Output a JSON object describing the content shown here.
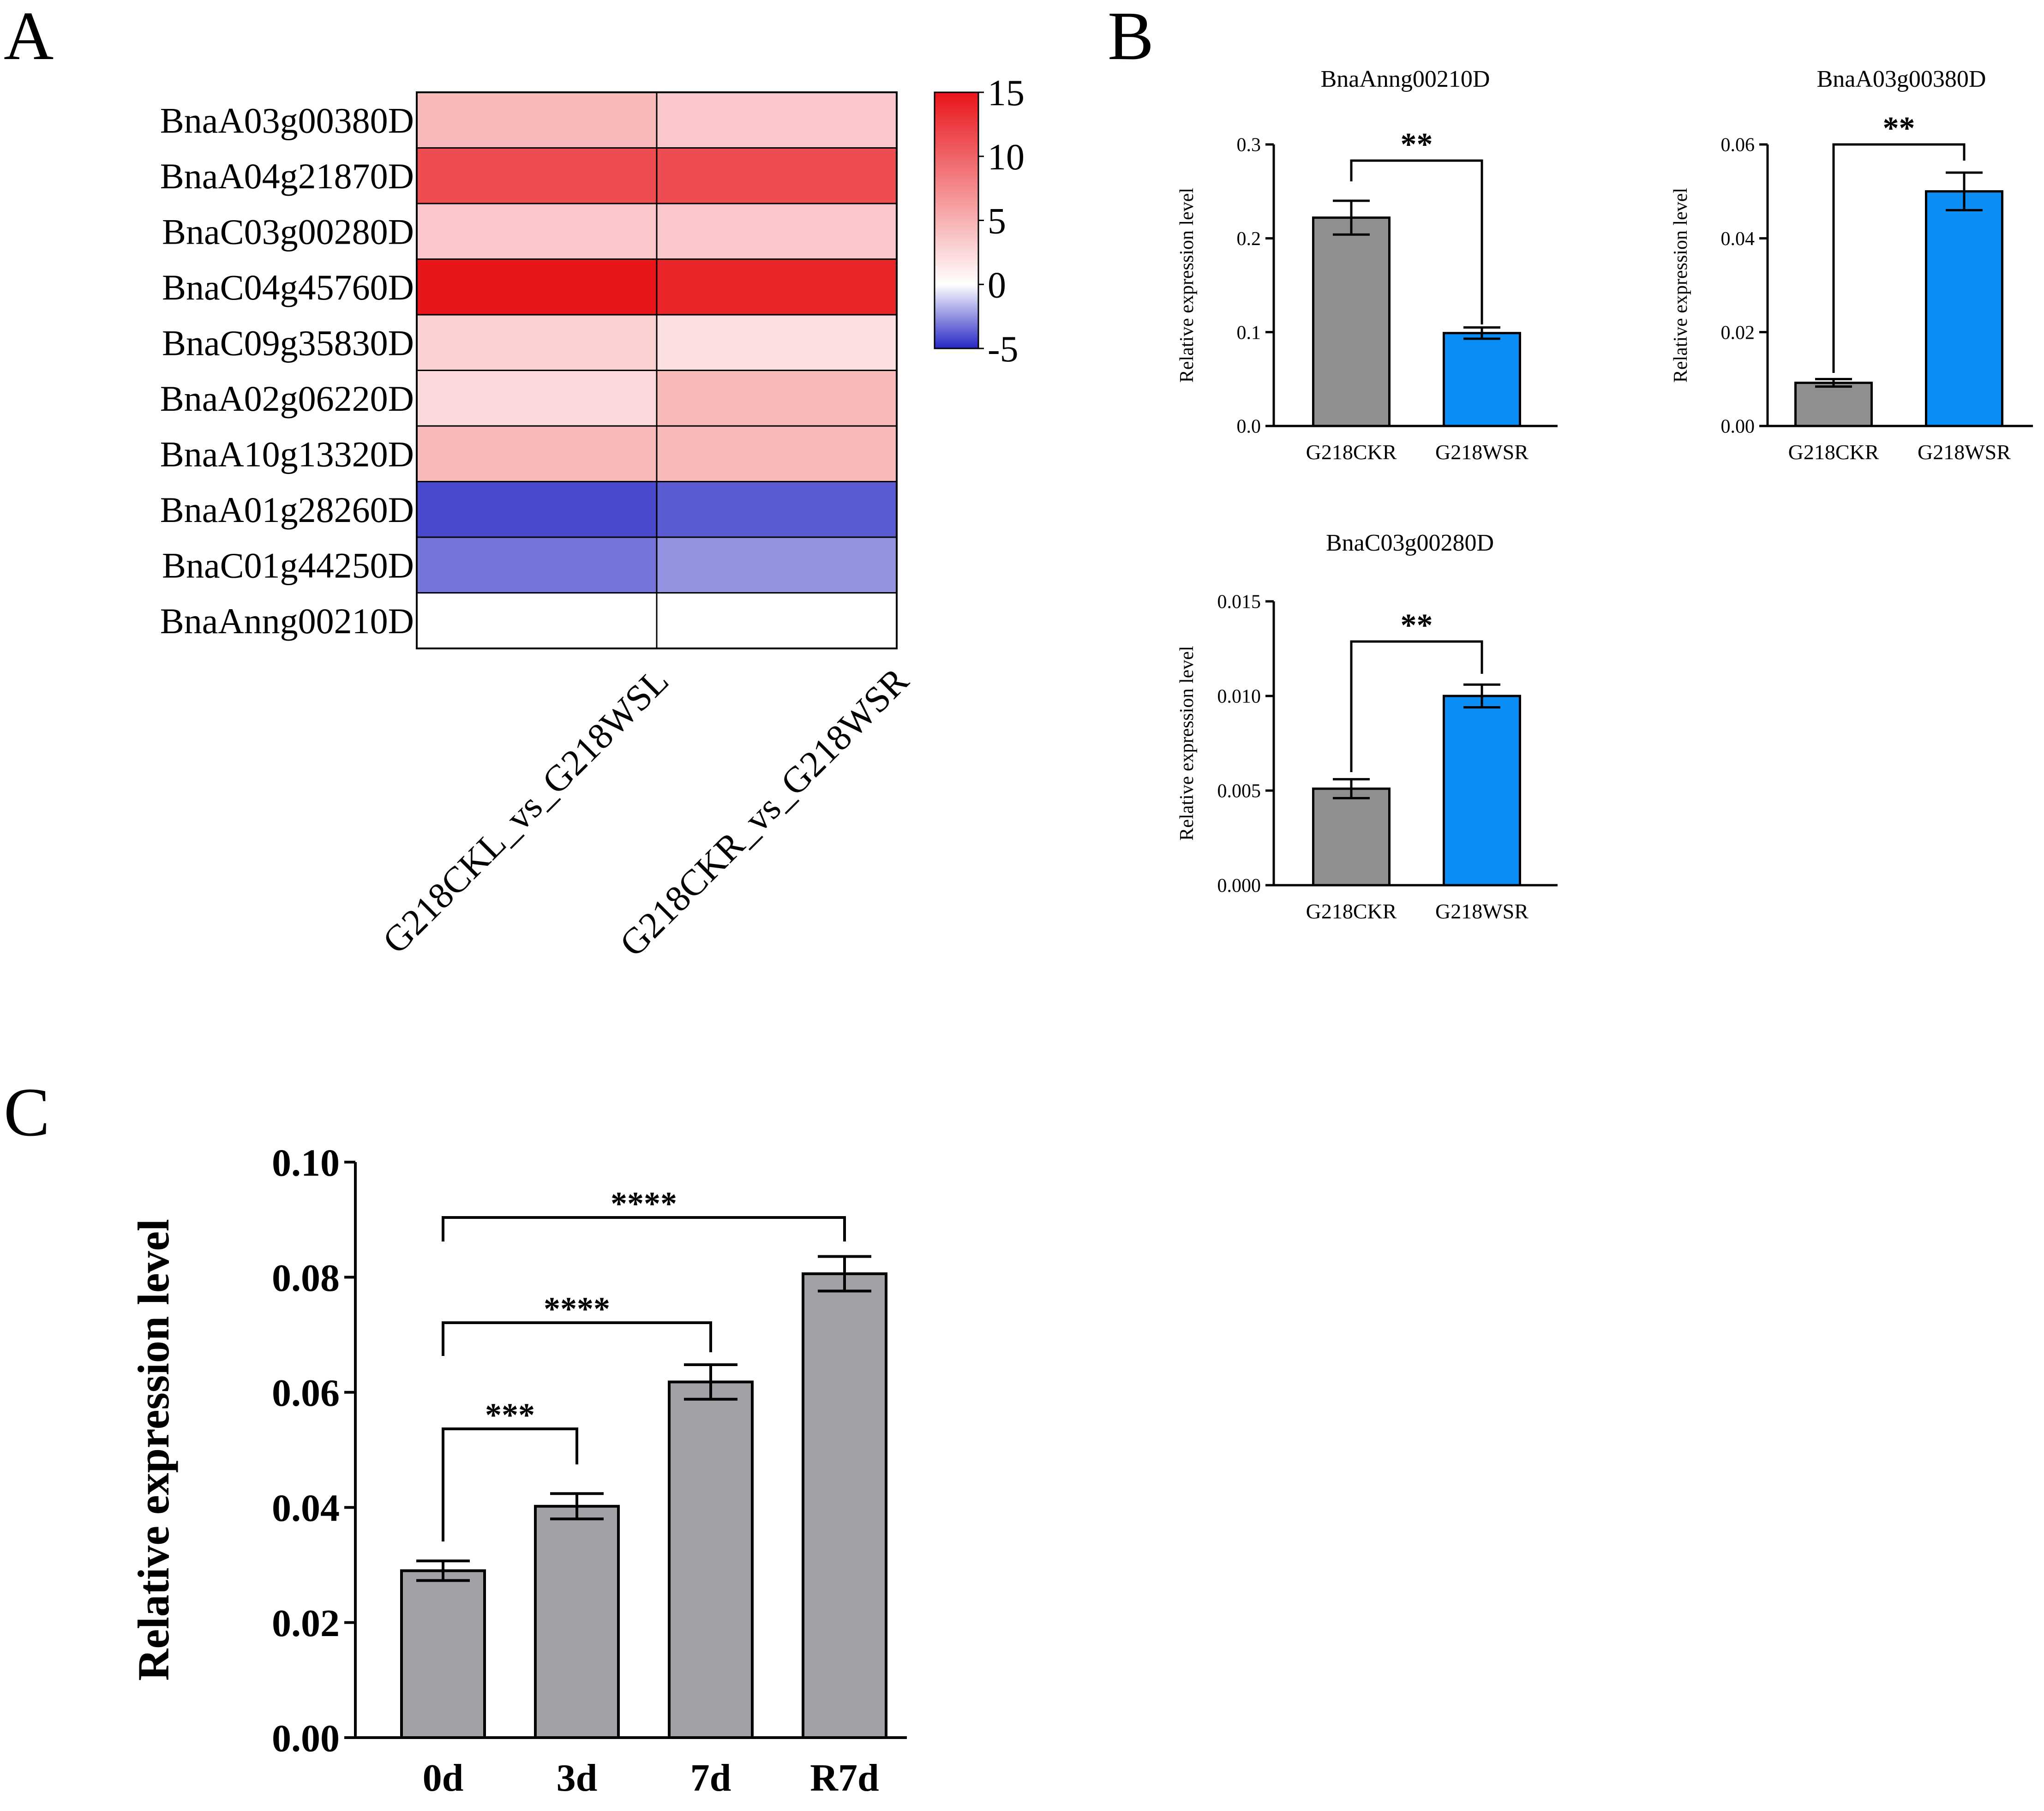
{
  "panel_labels": {
    "a": "A",
    "b": "B",
    "c": "C"
  },
  "colors": {
    "high": "#e8151b",
    "mid": "#ffffff",
    "low": "#2626c5",
    "bar_gray": "#8f8f8f",
    "bar_blue": "#0a8ef5",
    "bar_c": "#a2a2a6",
    "ink": "#000000"
  },
  "chart_data": [
    {
      "id": "A",
      "type": "heatmap",
      "rows": [
        "BnaA03g00380D",
        "BnaA04g21870D",
        "BnaC03g00280D",
        "BnaC04g45760D",
        "BnaC09g35830D",
        "BnaA02g06220D",
        "BnaA10g13320D",
        "BnaA01g28260D",
        "BnaC01g44250D",
        "BnaAnng00210D"
      ],
      "columns": [
        "G218CKL_vs_G218WSL",
        "G218CKR_vs_G218WSR"
      ],
      "values": [
        [
          4.5,
          3.5
        ],
        [
          11.5,
          11.5
        ],
        [
          3.5,
          3.5
        ],
        [
          15,
          14
        ],
        [
          3,
          2
        ],
        [
          2.5,
          4.5
        ],
        [
          4.5,
          4.5
        ],
        [
          -4.2,
          -3.8
        ],
        [
          -3.2,
          -2.5
        ],
        [
          0,
          0
        ]
      ],
      "colorbar": {
        "min": -5,
        "max": 15,
        "ticks": [
          "15",
          "10",
          "5",
          "0",
          "-5"
        ],
        "tick_values": [
          15,
          10,
          5,
          0,
          -5
        ]
      }
    },
    {
      "id": "B1",
      "type": "bar",
      "title": "BnaAnng00210D",
      "categories": [
        "G218CKR",
        "G218WSR"
      ],
      "values": [
        0.222,
        0.099
      ],
      "errors": [
        0.018,
        0.006
      ],
      "ylabel": "Relative expression level",
      "ylim": [
        0,
        0.3
      ],
      "yticks": [
        "0.0",
        "0.1",
        "0.2",
        "0.3"
      ],
      "ytick_values": [
        0,
        0.1,
        0.2,
        0.3
      ],
      "significance": [
        {
          "from": 0,
          "to": 1,
          "label": "**"
        }
      ]
    },
    {
      "id": "B2",
      "type": "bar",
      "title": "BnaA03g00380D",
      "categories": [
        "G218CKR",
        "G218WSR"
      ],
      "values": [
        0.0092,
        0.05
      ],
      "errors": [
        0.0008,
        0.004
      ],
      "ylabel": "Relative expression level",
      "ylim": [
        0,
        0.06
      ],
      "yticks": [
        "0.00",
        "0.02",
        "0.04",
        "0.06"
      ],
      "ytick_values": [
        0,
        0.02,
        0.04,
        0.06
      ],
      "significance": [
        {
          "from": 0,
          "to": 1,
          "label": "**"
        }
      ]
    },
    {
      "id": "B3",
      "type": "bar",
      "title": "BnaC03g00280D",
      "categories": [
        "G218CKR",
        "G218WSR"
      ],
      "values": [
        0.0051,
        0.01
      ],
      "errors": [
        0.0005,
        0.0006
      ],
      "ylabel": "Relative expression level",
      "ylim": [
        0,
        0.015
      ],
      "yticks": [
        "0.000",
        "0.005",
        "0.010",
        "0.015"
      ],
      "ytick_values": [
        0,
        0.005,
        0.01,
        0.015
      ],
      "significance": [
        {
          "from": 0,
          "to": 1,
          "label": "**"
        }
      ]
    },
    {
      "id": "C",
      "type": "bar",
      "title": "",
      "categories": [
        "0d",
        "3d",
        "7d",
        "R7d"
      ],
      "values": [
        0.029,
        0.0402,
        0.0618,
        0.0806
      ],
      "errors": [
        0.0017,
        0.0022,
        0.003,
        0.003
      ],
      "ylabel": "Relative expression level",
      "ylim": [
        0,
        0.1
      ],
      "yticks": [
        "0.00",
        "0.02",
        "0.04",
        "0.06",
        "0.08",
        "0.10"
      ],
      "ytick_values": [
        0,
        0.02,
        0.04,
        0.06,
        0.08,
        0.1
      ],
      "significance": [
        {
          "from": 0,
          "to": 1,
          "label": "***"
        },
        {
          "from": 0,
          "to": 2,
          "label": "****"
        },
        {
          "from": 0,
          "to": 3,
          "label": "****"
        }
      ]
    }
  ]
}
